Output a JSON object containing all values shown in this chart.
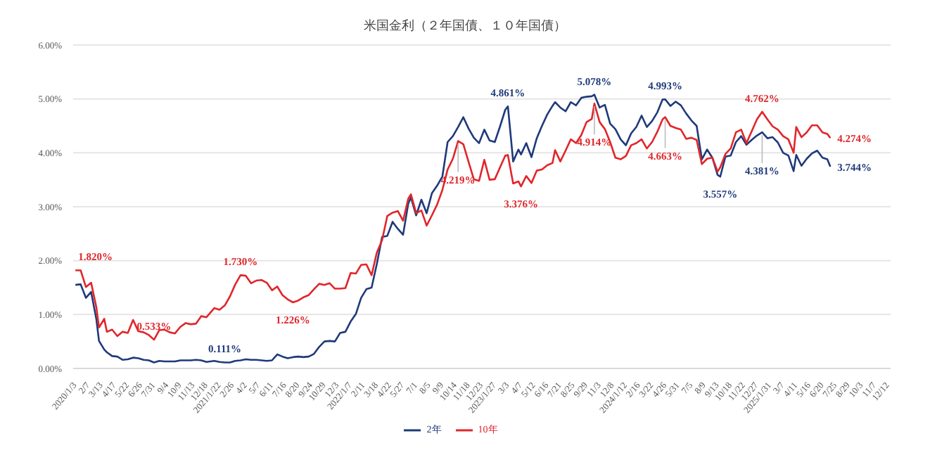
{
  "chart_data": {
    "type": "line",
    "title": "米国金利（２年国債、１０年国債）",
    "x": [
      "2020-01-03",
      "2020-01-17",
      "2020-01-31",
      "2020-02-14",
      "2020-02-28",
      "2020-03-06",
      "2020-03-20",
      "2020-03-27",
      "2020-04-10",
      "2020-04-24",
      "2020-05-08",
      "2020-05-22",
      "2020-06-05",
      "2020-06-19",
      "2020-07-03",
      "2020-07-17",
      "2020-07-31",
      "2020-08-14",
      "2020-08-28",
      "2020-09-11",
      "2020-09-25",
      "2020-10-09",
      "2020-10-23",
      "2020-11-06",
      "2020-11-20",
      "2020-12-04",
      "2020-12-18",
      "2021-01-08",
      "2021-01-22",
      "2021-02-05",
      "2021-02-19",
      "2021-03-05",
      "2021-03-19",
      "2021-04-02",
      "2021-04-16",
      "2021-04-30",
      "2021-05-14",
      "2021-05-28",
      "2021-06-11",
      "2021-06-25",
      "2021-07-09",
      "2021-07-23",
      "2021-08-06",
      "2021-08-20",
      "2021-09-03",
      "2021-09-17",
      "2021-10-01",
      "2021-10-15",
      "2021-10-29",
      "2021-11-12",
      "2021-11-26",
      "2021-12-10",
      "2021-12-24",
      "2022-01-07",
      "2022-01-21",
      "2022-02-04",
      "2022-02-18",
      "2022-03-04",
      "2022-03-18",
      "2022-04-01",
      "2022-04-15",
      "2022-04-29",
      "2022-05-13",
      "2022-05-27",
      "2022-06-10",
      "2022-06-17",
      "2022-07-01",
      "2022-07-15",
      "2022-07-29",
      "2022-08-12",
      "2022-08-26",
      "2022-09-09",
      "2022-09-23",
      "2022-10-07",
      "2022-10-21",
      "2022-11-04",
      "2022-11-18",
      "2022-12-02",
      "2022-12-16",
      "2022-12-30",
      "2023-01-13",
      "2023-01-27",
      "2023-02-10",
      "2023-02-24",
      "2023-03-03",
      "2023-03-17",
      "2023-03-31",
      "2023-04-07",
      "2023-04-21",
      "2023-05-05",
      "2023-05-19",
      "2023-06-02",
      "2023-06-16",
      "2023-06-30",
      "2023-07-07",
      "2023-07-21",
      "2023-08-04",
      "2023-08-18",
      "2023-09-01",
      "2023-09-15",
      "2023-09-29",
      "2023-10-13",
      "2023-10-20",
      "2023-11-03",
      "2023-11-17",
      "2023-12-01",
      "2023-12-15",
      "2023-12-29",
      "2024-01-12",
      "2024-01-26",
      "2024-02-09",
      "2024-02-23",
      "2024-03-08",
      "2024-03-22",
      "2024-04-05",
      "2024-04-19",
      "2024-04-26",
      "2024-05-10",
      "2024-05-24",
      "2024-06-07",
      "2024-06-21",
      "2024-07-05",
      "2024-07-19",
      "2024-08-02",
      "2024-08-16",
      "2024-08-30",
      "2024-09-13",
      "2024-09-20",
      "2024-10-04",
      "2024-10-18",
      "2024-11-01",
      "2024-11-15",
      "2024-11-29",
      "2024-12-13",
      "2024-12-27",
      "2025-01-10",
      "2025-01-24",
      "2025-02-07",
      "2025-02-21",
      "2025-03-07",
      "2025-03-21",
      "2025-04-04",
      "2025-04-11",
      "2025-04-25",
      "2025-05-09",
      "2025-05-23",
      "2025-06-06",
      "2025-06-20",
      "2025-07-03",
      "2025-07-11"
    ],
    "series": [
      {
        "name": "2年",
        "color": "#1f3a7a",
        "values": [
          1.55,
          1.56,
          1.31,
          1.42,
          0.91,
          0.51,
          0.35,
          0.3,
          0.23,
          0.22,
          0.16,
          0.17,
          0.2,
          0.19,
          0.16,
          0.15,
          0.11,
          0.14,
          0.13,
          0.13,
          0.13,
          0.15,
          0.15,
          0.15,
          0.16,
          0.15,
          0.12,
          0.14,
          0.12,
          0.111,
          0.11,
          0.14,
          0.15,
          0.17,
          0.16,
          0.16,
          0.15,
          0.14,
          0.15,
          0.26,
          0.22,
          0.19,
          0.21,
          0.22,
          0.21,
          0.22,
          0.27,
          0.4,
          0.5,
          0.51,
          0.5,
          0.66,
          0.68,
          0.87,
          1.01,
          1.31,
          1.47,
          1.5,
          1.94,
          2.44,
          2.46,
          2.72,
          2.59,
          2.48,
          3.06,
          3.17,
          2.84,
          3.13,
          2.88,
          3.25,
          3.39,
          3.56,
          4.2,
          4.31,
          4.48,
          4.66,
          4.45,
          4.28,
          4.18,
          4.43,
          4.23,
          4.2,
          4.49,
          4.8,
          4.861,
          3.84,
          4.06,
          3.97,
          4.18,
          3.92,
          4.27,
          4.5,
          4.71,
          4.87,
          4.94,
          4.84,
          4.77,
          4.94,
          4.88,
          5.02,
          5.04,
          5.05,
          5.078,
          4.84,
          4.89,
          4.54,
          4.44,
          4.25,
          4.14,
          4.36,
          4.48,
          4.69,
          4.48,
          4.59,
          4.75,
          4.99,
          4.993,
          4.87,
          4.95,
          4.88,
          4.73,
          4.6,
          4.5,
          3.88,
          4.06,
          3.91,
          3.59,
          3.557,
          3.93,
          3.95,
          4.2,
          4.31,
          4.15,
          4.24,
          4.32,
          4.381,
          4.27,
          4.29,
          4.19,
          4,
          3.95,
          3.66,
          3.96,
          3.76,
          3.89,
          3.99,
          4.04,
          3.91,
          3.88,
          3.744
        ]
      },
      {
        "name": "10年",
        "color": "#e0262b",
        "values": [
          1.82,
          1.82,
          1.51,
          1.59,
          1.13,
          0.76,
          0.92,
          0.68,
          0.72,
          0.6,
          0.68,
          0.66,
          0.9,
          0.69,
          0.67,
          0.62,
          0.533,
          0.71,
          0.72,
          0.67,
          0.65,
          0.77,
          0.84,
          0.82,
          0.83,
          0.97,
          0.95,
          1.12,
          1.09,
          1.17,
          1.34,
          1.56,
          1.73,
          1.72,
          1.58,
          1.63,
          1.64,
          1.59,
          1.45,
          1.52,
          1.36,
          1.28,
          1.226,
          1.26,
          1.32,
          1.36,
          1.47,
          1.57,
          1.55,
          1.58,
          1.48,
          1.48,
          1.49,
          1.77,
          1.76,
          1.92,
          1.93,
          1.73,
          2.15,
          2.38,
          2.83,
          2.89,
          2.92,
          2.74,
          3.15,
          3.23,
          2.88,
          2.93,
          2.65,
          2.84,
          3.04,
          3.31,
          3.69,
          3.89,
          4.219,
          4.16,
          3.83,
          3.51,
          3.48,
          3.87,
          3.5,
          3.51,
          3.73,
          3.95,
          3.96,
          3.43,
          3.47,
          3.376,
          3.57,
          3.44,
          3.67,
          3.69,
          3.77,
          3.81,
          4.05,
          3.84,
          4.04,
          4.25,
          4.18,
          4.33,
          4.57,
          4.63,
          4.914,
          4.57,
          4.44,
          4.2,
          3.91,
          3.88,
          3.94,
          4.14,
          4.18,
          4.25,
          4.08,
          4.2,
          4.39,
          4.62,
          4.663,
          4.5,
          4.46,
          4.43,
          4.26,
          4.28,
          4.24,
          3.79,
          3.89,
          3.91,
          3.65,
          3.73,
          3.98,
          4.08,
          4.38,
          4.43,
          4.18,
          4.4,
          4.62,
          4.762,
          4.62,
          4.49,
          4.43,
          4.31,
          4.25,
          4,
          4.48,
          4.29,
          4.38,
          4.51,
          4.51,
          4.38,
          4.35,
          4.274
        ]
      }
    ],
    "xlim": [
      "2019-12-28",
      "2025-12-19"
    ],
    "xticks": [
      {
        "value": "2020-01-03",
        "label": "2020/1/3"
      },
      {
        "value": "2020-02-07",
        "label": "2/7"
      },
      {
        "value": "2020-03-13",
        "label": "3/13"
      },
      {
        "value": "2020-04-17",
        "label": "4/17"
      },
      {
        "value": "2020-05-22",
        "label": "5/22"
      },
      {
        "value": "2020-06-26",
        "label": "6/26"
      },
      {
        "value": "2020-07-31",
        "label": "7/31"
      },
      {
        "value": "2020-09-04",
        "label": "9/4"
      },
      {
        "value": "2020-10-09",
        "label": "10/9"
      },
      {
        "value": "2020-11-13",
        "label": "11/13"
      },
      {
        "value": "2020-12-18",
        "label": "12/18"
      },
      {
        "value": "2021-01-22",
        "label": "2021/1/22"
      },
      {
        "value": "2021-02-26",
        "label": "2/26"
      },
      {
        "value": "2021-04-02",
        "label": "4/2"
      },
      {
        "value": "2021-05-07",
        "label": "5/7"
      },
      {
        "value": "2021-06-11",
        "label": "6/11"
      },
      {
        "value": "2021-07-16",
        "label": "7/16"
      },
      {
        "value": "2021-08-20",
        "label": "8/20"
      },
      {
        "value": "2021-09-24",
        "label": "9/24"
      },
      {
        "value": "2021-10-29",
        "label": "10/29"
      },
      {
        "value": "2021-12-03",
        "label": "12/3"
      },
      {
        "value": "2022-01-07",
        "label": "2022/1/7"
      },
      {
        "value": "2022-02-11",
        "label": "2/11"
      },
      {
        "value": "2022-03-18",
        "label": "3/18"
      },
      {
        "value": "2022-04-22",
        "label": "4/22"
      },
      {
        "value": "2022-05-27",
        "label": "5/27"
      },
      {
        "value": "2022-07-01",
        "label": "7/1"
      },
      {
        "value": "2022-08-05",
        "label": "8/5"
      },
      {
        "value": "2022-09-09",
        "label": "9/9"
      },
      {
        "value": "2022-10-14",
        "label": "10/14"
      },
      {
        "value": "2022-11-18",
        "label": "11/18"
      },
      {
        "value": "2022-12-23",
        "label": "12/23"
      },
      {
        "value": "2023-01-27",
        "label": "2023/1/27"
      },
      {
        "value": "2023-03-03",
        "label": "3/3"
      },
      {
        "value": "2023-04-07",
        "label": "4/7"
      },
      {
        "value": "2023-05-12",
        "label": "5/12"
      },
      {
        "value": "2023-06-16",
        "label": "6/16"
      },
      {
        "value": "2023-07-21",
        "label": "7/21"
      },
      {
        "value": "2023-08-25",
        "label": "8/25"
      },
      {
        "value": "2023-09-29",
        "label": "9/29"
      },
      {
        "value": "2023-11-03",
        "label": "11/3"
      },
      {
        "value": "2023-12-08",
        "label": "12/8"
      },
      {
        "value": "2024-01-12",
        "label": "2024/1/12"
      },
      {
        "value": "2024-02-16",
        "label": "2/16"
      },
      {
        "value": "2024-03-22",
        "label": "3/22"
      },
      {
        "value": "2024-04-26",
        "label": "4/26"
      },
      {
        "value": "2024-05-31",
        "label": "5/31"
      },
      {
        "value": "2024-07-05",
        "label": "7/5"
      },
      {
        "value": "2024-08-09",
        "label": "8/9"
      },
      {
        "value": "2024-09-13",
        "label": "9/13"
      },
      {
        "value": "2024-10-18",
        "label": "10/18"
      },
      {
        "value": "2024-11-22",
        "label": "11/22"
      },
      {
        "value": "2024-12-27",
        "label": "12/27"
      },
      {
        "value": "2025-01-31",
        "label": "2025/1/31"
      },
      {
        "value": "2025-03-07",
        "label": "3/7"
      },
      {
        "value": "2025-04-11",
        "label": "4/11"
      },
      {
        "value": "2025-05-16",
        "label": "5/16"
      },
      {
        "value": "2025-06-20",
        "label": "6/20"
      },
      {
        "value": "2025-07-25",
        "label": "7/25"
      },
      {
        "value": "2025-08-29",
        "label": "8/29"
      },
      {
        "value": "2025-10-03",
        "label": "10/3"
      },
      {
        "value": "2025-11-07",
        "label": "11/7"
      },
      {
        "value": "2025-12-12",
        "label": "12/12"
      }
    ],
    "ylim": [
      0,
      6
    ],
    "yticks": [
      {
        "value": 0,
        "label": "0.00%"
      },
      {
        "value": 1,
        "label": "1.00%"
      },
      {
        "value": 2,
        "label": "2.00%"
      },
      {
        "value": 3,
        "label": "3.00%"
      },
      {
        "value": 4,
        "label": "4.00%"
      },
      {
        "value": 5,
        "label": "5.00%"
      },
      {
        "value": 6,
        "label": "6.00%"
      }
    ],
    "grid": "y",
    "legend": "bottom",
    "marker": "none",
    "line_style": "solid",
    "annotations": [
      {
        "text": "1.820%",
        "x": "2020-01-03",
        "y": 1.82
      },
      {
        "text": "0.533%",
        "x": "2020-07-31",
        "y": 0.533
      },
      {
        "text": "0.111%",
        "x": "2021-02-05",
        "y": 0.111
      },
      {
        "text": "1.730%",
        "x": "2021-03-19",
        "y": 1.73
      },
      {
        "text": "1.226%",
        "x": "2021-08-06",
        "y": 1.226
      },
      {
        "text": "4.219%",
        "x": "2022-10-21",
        "y": 4.219
      },
      {
        "text": "4.861%",
        "x": "2023-03-03",
        "y": 4.861
      },
      {
        "text": "3.376%",
        "x": "2023-04-07",
        "y": 3.376
      },
      {
        "text": "5.078%",
        "x": "2023-10-20",
        "y": 5.078
      },
      {
        "text": "4.914%",
        "x": "2023-10-20",
        "y": 4.914
      },
      {
        "text": "4.993%",
        "x": "2024-04-26",
        "y": 4.993
      },
      {
        "text": "4.663%",
        "x": "2024-04-26",
        "y": 4.663
      },
      {
        "text": "3.557%",
        "x": "2024-09-20",
        "y": 3.557
      },
      {
        "text": "4.381%",
        "x": "2025-01-10",
        "y": 4.381
      },
      {
        "text": "4.762%",
        "x": "2025-01-10",
        "y": 4.762
      },
      {
        "text": "3.744%",
        "x": "2025-07-11",
        "y": 3.744
      },
      {
        "text": "4.274%",
        "x": "2025-07-11",
        "y": 4.274
      }
    ]
  }
}
